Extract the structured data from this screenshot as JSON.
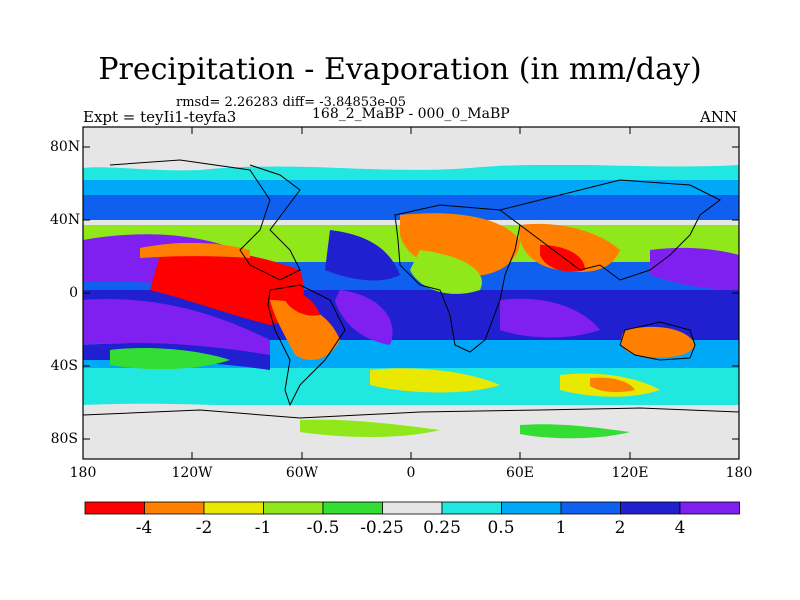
{
  "title": "Precipitation - Evaporation (in mm/day)",
  "stats": "rmsd= 2.26283 diff= -3.84853e-05",
  "expt": "Expt = teyIi1-teyfa3",
  "period": "168_2_MaBP - 000_0_MaBP",
  "season": "ANN",
  "lat_ticks": [
    "80N",
    "40N",
    "0",
    "40S",
    "80S"
  ],
  "lon_ticks": [
    "180",
    "120W",
    "60W",
    "0",
    "60E",
    "120E",
    "180"
  ],
  "colorbar": {
    "labels": [
      "-4",
      "-2",
      "-1",
      "-0.5",
      "-0.25",
      "0.25",
      "0.5",
      "1",
      "2",
      "4"
    ],
    "colors": [
      "#ff0000",
      "#ff8000",
      "#e8e800",
      "#90e81a",
      "#33dd33",
      "#e6e6e6",
      "#20e8e0",
      "#00a8f8",
      "#1060f0",
      "#2020d0",
      "#8020f0"
    ]
  }
}
